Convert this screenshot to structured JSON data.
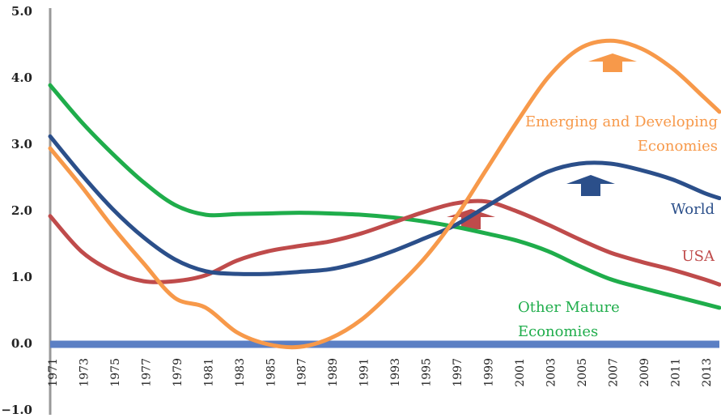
{
  "chart_data": {
    "type": "line",
    "x": [
      1971,
      1973,
      1975,
      1977,
      1979,
      1981,
      1983,
      1985,
      1987,
      1989,
      1991,
      1993,
      1995,
      1997,
      1999,
      2001,
      2003,
      2005,
      2007,
      2009,
      2011,
      2013,
      2014
    ],
    "xlim": [
      1971,
      2014
    ],
    "xticks": [
      1971,
      1973,
      1975,
      1977,
      1979,
      1981,
      1983,
      1985,
      1987,
      1989,
      1991,
      1993,
      1995,
      1997,
      1999,
      2001,
      2003,
      2005,
      2007,
      2009,
      2011,
      2013
    ],
    "ylim": [
      -1,
      5
    ],
    "yticks": [
      {
        "value": 5,
        "label": "5.0"
      },
      {
        "value": 4,
        "label": "4.0"
      },
      {
        "value": 3,
        "label": "3.0"
      },
      {
        "value": 2,
        "label": "2.0"
      },
      {
        "value": 1,
        "label": "1.0"
      },
      {
        "value": 0,
        "label": "0.0"
      },
      {
        "value": -1,
        "label": "−1.0"
      }
    ],
    "series": [
      {
        "name": "Other Mature Economies",
        "color": "#1fad4b",
        "values": [
          3.9,
          3.35,
          2.87,
          2.44,
          2.1,
          1.95,
          1.96,
          1.97,
          1.98,
          1.97,
          1.95,
          1.91,
          1.85,
          1.77,
          1.67,
          1.56,
          1.4,
          1.18,
          0.98,
          0.85,
          0.73,
          0.61,
          0.55
        ]
      },
      {
        "name": "USA",
        "color": "#bf4b4b",
        "values": [
          1.93,
          1.4,
          1.1,
          0.95,
          0.95,
          1.04,
          1.26,
          1.4,
          1.48,
          1.55,
          1.67,
          1.83,
          1.99,
          2.12,
          2.15,
          2.0,
          1.8,
          1.58,
          1.38,
          1.24,
          1.12,
          0.98,
          0.9
        ]
      },
      {
        "name": "World",
        "color": "#2b4f8a",
        "values": [
          3.13,
          2.56,
          2.04,
          1.61,
          1.28,
          1.1,
          1.06,
          1.06,
          1.09,
          1.13,
          1.24,
          1.4,
          1.59,
          1.79,
          2.07,
          2.35,
          2.6,
          2.72,
          2.72,
          2.62,
          2.48,
          2.28,
          2.2
        ]
      },
      {
        "name": "Emerging and Developing Economies",
        "color": "#f7994a",
        "values": [
          2.95,
          2.38,
          1.77,
          1.22,
          0.7,
          0.55,
          0.18,
          0.0,
          -0.04,
          0.09,
          0.37,
          0.8,
          1.28,
          1.89,
          2.62,
          3.35,
          4.02,
          4.45,
          4.57,
          4.45,
          4.15,
          3.72,
          3.5
        ]
      }
    ]
  }
}
